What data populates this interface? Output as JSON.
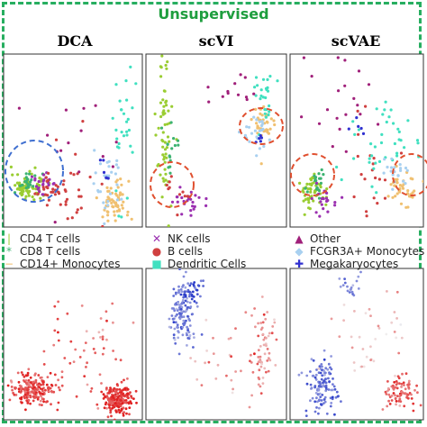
{
  "figure": {
    "title": "Unsupervised",
    "columns": [
      "DCA",
      "scVI",
      "scVAE"
    ]
  },
  "legend": [
    {
      "label": "CD4 T cells",
      "marker": "|",
      "color": "#9acd32"
    },
    {
      "label": "CD8 T cells",
      "marker": "*",
      "color": "#3cb371"
    },
    {
      "label": "CD14+ Monocytes",
      "marker": "−",
      "color": "#f0c070"
    },
    {
      "label": "NK cells",
      "marker": "✕",
      "color": "#9b30b0"
    },
    {
      "label": "B cells",
      "marker": "●",
      "color": "#d04040"
    },
    {
      "label": "Dendritic Cells",
      "marker": "■",
      "color": "#40e0c0"
    },
    {
      "label": "Other",
      "marker": "▲",
      "color": "#a0207a"
    },
    {
      "label": "FCGR3A+ Monocytes",
      "marker": "◆",
      "color": "#a8d0f0"
    },
    {
      "label": "Megakaryocytes",
      "marker": "✚",
      "color": "#3030d0"
    }
  ],
  "colors": {
    "frame": "#27ae60",
    "title": "#1e9e3e",
    "dashed_circle_blue": "#3f6fd0",
    "dashed_circle_red": "#e05030",
    "low_value": "#2b3cc9",
    "high_value": "#e02020"
  },
  "chart_data": [
    {
      "type": "scatter",
      "title": "DCA",
      "row": "cell types",
      "series": [
        {
          "name": "CD4 T cells",
          "clusters": [
            [
              0.12,
              0.22,
              0.05,
              0.04,
              50
            ],
            [
              0.22,
              0.2,
              0.03,
              0.04,
              20
            ]
          ]
        },
        {
          "name": "CD8 T cells",
          "clusters": [
            [
              0.14,
              0.24,
              0.05,
              0.04,
              20
            ]
          ]
        },
        {
          "name": "CD14+ Monocytes",
          "clusters": [
            [
              0.82,
              0.12,
              0.06,
              0.07,
              60
            ]
          ]
        },
        {
          "name": "NK cells",
          "clusters": [
            [
              0.28,
              0.23,
              0.05,
              0.04,
              25
            ]
          ]
        },
        {
          "name": "B cells",
          "clusters": [
            [
              0.34,
              0.2,
              0.06,
              0.04,
              30
            ],
            [
              0.55,
              0.25,
              0.1,
              0.12,
              20
            ]
          ]
        },
        {
          "name": "Dendritic Cells",
          "clusters": [
            [
              0.9,
              0.55,
              0.05,
              0.25,
              30
            ]
          ]
        },
        {
          "name": "Other",
          "clusters": [
            [
              0.5,
              0.45,
              0.2,
              0.2,
              15
            ]
          ]
        },
        {
          "name": "FCGR3A+ Monocytes",
          "clusters": [
            [
              0.78,
              0.25,
              0.06,
              0.1,
              30
            ]
          ]
        },
        {
          "name": "Megakaryocytes",
          "clusters": [
            [
              0.75,
              0.3,
              0.04,
              0.04,
              6
            ]
          ]
        }
      ]
    },
    {
      "type": "scatter",
      "title": "scVI",
      "row": "cell types",
      "series": [
        {
          "name": "CD4 T cells",
          "clusters": [
            [
              0.1,
              0.55,
              0.03,
              0.25,
              60
            ]
          ]
        },
        {
          "name": "CD8 T cells",
          "clusters": [
            [
              0.15,
              0.45,
              0.04,
              0.08,
              15
            ]
          ]
        },
        {
          "name": "CD14+ Monocytes",
          "clusters": [
            [
              0.86,
              0.6,
              0.05,
              0.06,
              40
            ]
          ]
        },
        {
          "name": "NK cells",
          "clusters": [
            [
              0.3,
              0.12,
              0.06,
              0.04,
              25
            ]
          ]
        },
        {
          "name": "B cells",
          "clusters": [
            [
              0.2,
              0.2,
              0.05,
              0.05,
              10
            ]
          ]
        },
        {
          "name": "Dendritic Cells",
          "clusters": [
            [
              0.88,
              0.75,
              0.05,
              0.1,
              25
            ]
          ]
        },
        {
          "name": "Other",
          "clusters": [
            [
              0.6,
              0.8,
              0.12,
              0.08,
              12
            ]
          ]
        },
        {
          "name": "FCGR3A+ Monocytes",
          "clusters": [
            [
              0.8,
              0.55,
              0.05,
              0.06,
              25
            ]
          ]
        },
        {
          "name": "Megakaryocytes",
          "clusters": [
            [
              0.82,
              0.5,
              0.03,
              0.03,
              5
            ]
          ]
        }
      ]
    },
    {
      "type": "scatter",
      "title": "scVAE",
      "row": "cell types",
      "series": [
        {
          "name": "CD4 T cells",
          "clusters": [
            [
              0.14,
              0.2,
              0.05,
              0.06,
              50
            ]
          ]
        },
        {
          "name": "CD8 T cells",
          "clusters": [
            [
              0.18,
              0.22,
              0.04,
              0.05,
              20
            ]
          ]
        },
        {
          "name": "CD14+ Monocytes",
          "clusters": [
            [
              0.88,
              0.2,
              0.06,
              0.05,
              40
            ]
          ]
        },
        {
          "name": "NK cells",
          "clusters": [
            [
              0.25,
              0.15,
              0.05,
              0.05,
              20
            ]
          ]
        },
        {
          "name": "B cells",
          "clusters": [
            [
              0.6,
              0.35,
              0.1,
              0.15,
              20
            ]
          ]
        },
        {
          "name": "Dendritic Cells",
          "clusters": [
            [
              0.7,
              0.5,
              0.15,
              0.15,
              40
            ]
          ]
        },
        {
          "name": "Other",
          "clusters": [
            [
              0.3,
              0.7,
              0.15,
              0.2,
              20
            ]
          ]
        },
        {
          "name": "FCGR3A+ Monocytes",
          "clusters": [
            [
              0.82,
              0.3,
              0.05,
              0.05,
              20
            ]
          ]
        },
        {
          "name": "Megakaryocytes",
          "clusters": [
            [
              0.5,
              0.6,
              0.04,
              0.04,
              5
            ]
          ]
        }
      ]
    },
    {
      "type": "scatter",
      "title": "DCA",
      "row": "gradient",
      "clusters": [
        [
          0.85,
          0.1,
          0.06,
          0.05,
          200,
          0.95
        ],
        [
          0.18,
          0.18,
          0.08,
          0.05,
          200,
          0.9
        ],
        [
          0.45,
          0.4,
          0.15,
          0.2,
          40,
          0.85
        ],
        [
          0.75,
          0.5,
          0.1,
          0.2,
          20,
          0.8
        ]
      ]
    },
    {
      "type": "scatter",
      "title": "scVI",
      "row": "gradient",
      "clusters": [
        [
          0.25,
          0.72,
          0.05,
          0.12,
          120,
          0.2
        ],
        [
          0.32,
          0.88,
          0.06,
          0.04,
          40,
          0.05
        ],
        [
          0.85,
          0.5,
          0.05,
          0.15,
          60,
          0.75
        ],
        [
          0.6,
          0.35,
          0.15,
          0.15,
          30,
          0.7
        ]
      ]
    },
    {
      "type": "scatter",
      "title": "scVAE",
      "row": "gradient",
      "clusters": [
        [
          0.22,
          0.2,
          0.06,
          0.1,
          120,
          0.15
        ],
        [
          0.85,
          0.15,
          0.06,
          0.06,
          80,
          0.85
        ],
        [
          0.6,
          0.55,
          0.15,
          0.2,
          40,
          0.6
        ],
        [
          0.45,
          0.9,
          0.05,
          0.05,
          20,
          0.2
        ]
      ]
    }
  ]
}
